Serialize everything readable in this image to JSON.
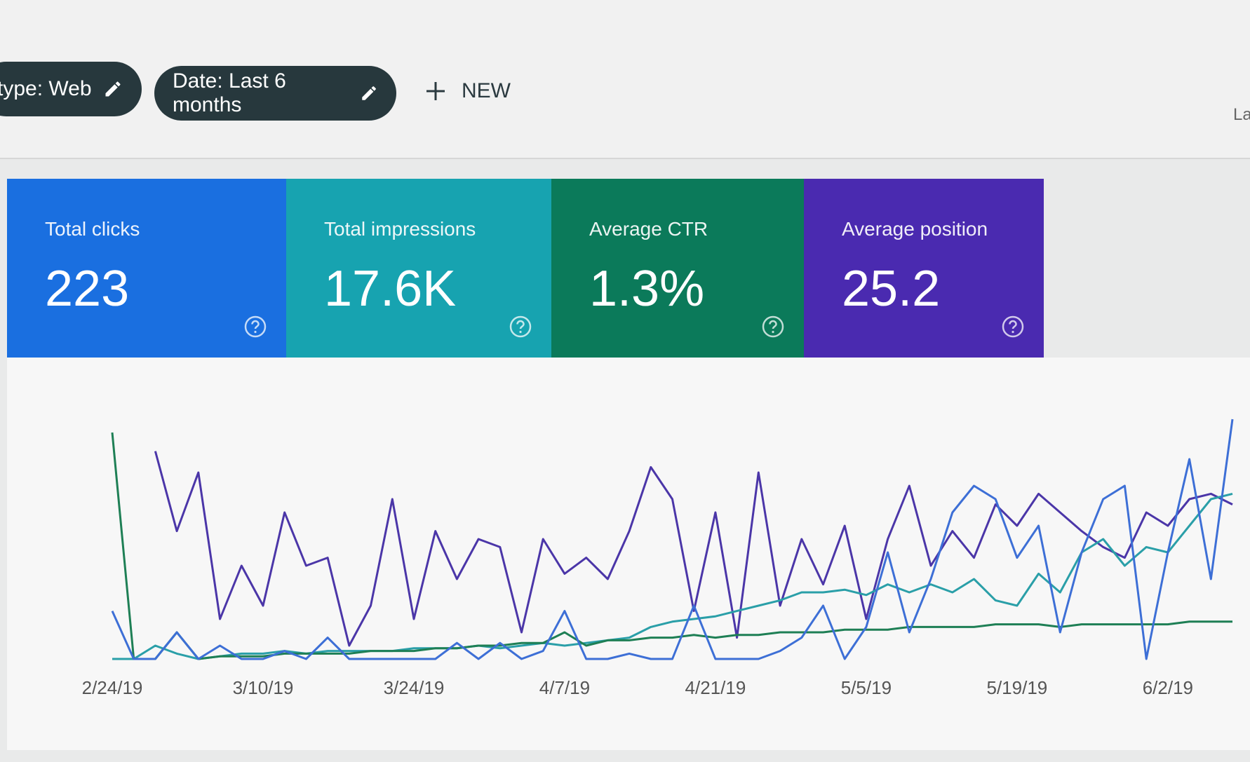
{
  "filters": [
    {
      "label": "type: Web"
    },
    {
      "label": "Date: Last 6 months"
    }
  ],
  "new_button": "NEW",
  "side_text": "La",
  "cards": [
    {
      "title": "Total clicks",
      "value": "223",
      "color": "#1a6fe0"
    },
    {
      "title": "Total impressions",
      "value": "17.6K",
      "color": "#17a3b0"
    },
    {
      "title": "Average CTR",
      "value": "1.3%",
      "color": "#0b7a5a"
    },
    {
      "title": "Average position",
      "value": "25.2",
      "color": "#4a2ab0"
    }
  ],
  "chart_data": {
    "type": "line",
    "categories": [
      "2/24/19",
      null,
      null,
      null,
      null,
      null,
      null,
      "3/10/19",
      null,
      null,
      null,
      null,
      null,
      null,
      "3/24/19",
      null,
      null,
      null,
      null,
      null,
      null,
      "4/7/19",
      null,
      null,
      null,
      null,
      null,
      null,
      "4/21/19",
      null,
      null,
      null,
      null,
      null,
      null,
      "5/5/19",
      null,
      null,
      null,
      null,
      null,
      null,
      "5/19/19",
      null,
      null,
      null,
      null,
      null,
      null,
      "6/2/19",
      null,
      null,
      null
    ],
    "ylim": [
      0,
      100
    ],
    "series": [
      {
        "color": "#4b36a8",
        "values": [
          null,
          null,
          78,
          48,
          70,
          15,
          35,
          20,
          55,
          35,
          38,
          5,
          20,
          60,
          15,
          48,
          30,
          45,
          42,
          10,
          45,
          32,
          38,
          30,
          48,
          72,
          60,
          18,
          55,
          8,
          70,
          20,
          45,
          28,
          50,
          15,
          45,
          65,
          35,
          48,
          38,
          58,
          50,
          62,
          55,
          48,
          42,
          38,
          55,
          50,
          60,
          62,
          58
        ]
      },
      {
        "color": "#2a9fa8",
        "values": [
          0,
          0,
          5,
          2,
          0,
          1,
          2,
          2,
          3,
          2,
          3,
          3,
          3,
          3,
          4,
          4,
          4,
          5,
          4,
          5,
          6,
          5,
          6,
          7,
          8,
          12,
          14,
          15,
          16,
          18,
          20,
          22,
          25,
          25,
          26,
          24,
          28,
          25,
          28,
          25,
          30,
          22,
          20,
          32,
          25,
          40,
          45,
          35,
          42,
          40,
          50,
          60,
          62
        ]
      },
      {
        "color": "#1e7f55",
        "values": [
          85,
          0,
          0,
          10,
          0,
          1,
          1,
          1,
          2,
          2,
          2,
          2,
          3,
          3,
          3,
          4,
          4,
          5,
          5,
          6,
          6,
          10,
          5,
          7,
          7,
          8,
          8,
          9,
          8,
          9,
          9,
          10,
          10,
          10,
          11,
          11,
          11,
          12,
          12,
          12,
          12,
          13,
          13,
          13,
          12,
          13,
          13,
          13,
          13,
          13,
          14,
          14,
          14
        ]
      },
      {
        "color": "#3d6fd6",
        "values": [
          18,
          0,
          0,
          10,
          0,
          5,
          0,
          0,
          3,
          0,
          8,
          0,
          0,
          0,
          0,
          0,
          6,
          0,
          6,
          0,
          3,
          18,
          0,
          0,
          2,
          0,
          0,
          20,
          0,
          0,
          0,
          3,
          8,
          20,
          0,
          12,
          40,
          10,
          30,
          55,
          65,
          60,
          38,
          50,
          10,
          40,
          60,
          65,
          0,
          40,
          75,
          30,
          90
        ]
      }
    ]
  }
}
